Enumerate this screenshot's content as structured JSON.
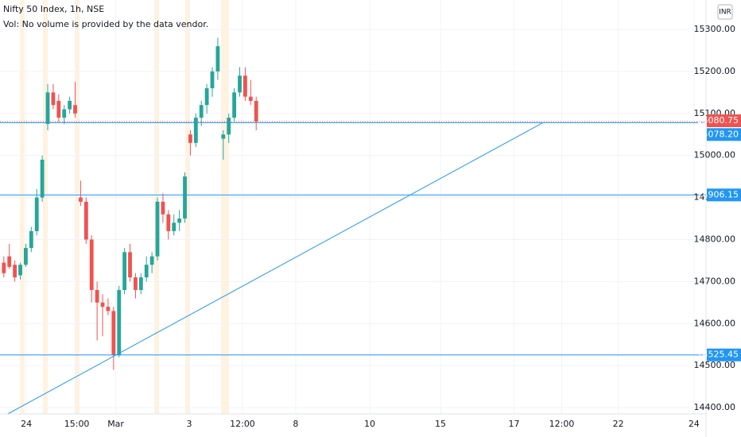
{
  "chart_data": {
    "type": "candlestick",
    "title": "Nifty 50 Index, 1h, NSE",
    "subtitle": "Vol: No volume is provided by the data vendor.",
    "currency": "INR",
    "up_color": "#26a69a",
    "down_color": "#ef5350",
    "line_color": "#2196f3",
    "ylim": [
      14385,
      15370
    ],
    "yticks": [
      {
        "value": 14400,
        "label": "14400.00"
      },
      {
        "value": 14500,
        "label": "14500.00"
      },
      {
        "value": 14600,
        "label": "14600.00"
      },
      {
        "value": 14700,
        "label": "14700.00"
      },
      {
        "value": 14800,
        "label": "14800.00"
      },
      {
        "value": 14900,
        "label": "14900.00"
      },
      {
        "value": 15000,
        "label": "15000.00"
      },
      {
        "value": 15100,
        "label": "15100.00"
      },
      {
        "value": 15200,
        "label": "15200.00"
      },
      {
        "value": 15300,
        "label": "15300.00"
      }
    ],
    "xlim": [
      -0.7,
      128
    ],
    "xticks": [
      {
        "value": 4.1,
        "label": "24"
      },
      {
        "value": 13.3,
        "label": "15:00"
      },
      {
        "value": 20.4,
        "label": "Mar"
      },
      {
        "value": 33.8,
        "label": "3"
      },
      {
        "value": 43.5,
        "label": "12:00"
      },
      {
        "value": 53.2,
        "label": "8"
      },
      {
        "value": 66.7,
        "label": "10"
      },
      {
        "value": 79.6,
        "label": "15"
      },
      {
        "value": 93,
        "label": "17"
      },
      {
        "value": 101.7,
        "label": "12:00"
      },
      {
        "value": 112,
        "label": "22"
      },
      {
        "value": 125.8,
        "label": "24"
      }
    ],
    "grid": true,
    "candles": [
      {
        "o": 14745,
        "h": 14760,
        "l": 14710,
        "c": 14720
      },
      {
        "o": 14760,
        "h": 14790,
        "l": 14730,
        "c": 14735
      },
      {
        "o": 14740,
        "h": 14750,
        "l": 14700,
        "c": 14710
      },
      {
        "o": 14715,
        "h": 14745,
        "l": 14705,
        "c": 14740
      },
      {
        "o": 14740,
        "h": 14790,
        "l": 14735,
        "c": 14780
      },
      {
        "o": 14780,
        "h": 14830,
        "l": 14770,
        "c": 14820
      },
      {
        "o": 14820,
        "h": 14920,
        "l": 14810,
        "c": 14900
      },
      {
        "o": 14900,
        "h": 15000,
        "l": 14890,
        "c": 14990
      },
      {
        "o": 15075,
        "h": 15170,
        "l": 15060,
        "c": 15150
      },
      {
        "o": 15150,
        "h": 15170,
        "l": 15110,
        "c": 15120
      },
      {
        "o": 15130,
        "h": 15145,
        "l": 15080,
        "c": 15090
      },
      {
        "o": 15090,
        "h": 15120,
        "l": 15075,
        "c": 15110
      },
      {
        "o": 15110,
        "h": 15140,
        "l": 15100,
        "c": 15130
      },
      {
        "o": 15120,
        "h": 15175,
        "l": 15090,
        "c": 15100
      },
      {
        "o": 14900,
        "h": 14940,
        "l": 14880,
        "c": 14890
      },
      {
        "o": 14890,
        "h": 14900,
        "l": 14790,
        "c": 14800
      },
      {
        "o": 14800,
        "h": 14810,
        "l": 14650,
        "c": 14680
      },
      {
        "o": 14680,
        "h": 14700,
        "l": 14560,
        "c": 14650
      },
      {
        "o": 14650,
        "h": 14670,
        "l": 14570,
        "c": 14640
      },
      {
        "o": 14640,
        "h": 14660,
        "l": 14620,
        "c": 14630
      },
      {
        "o": 14630,
        "h": 14640,
        "l": 14490,
        "c": 14525
      },
      {
        "o": 14525,
        "h": 14690,
        "l": 14520,
        "c": 14680
      },
      {
        "o": 14680,
        "h": 14780,
        "l": 14670,
        "c": 14770
      },
      {
        "o": 14770,
        "h": 14790,
        "l": 14700,
        "c": 14710
      },
      {
        "o": 14710,
        "h": 14720,
        "l": 14660,
        "c": 14680
      },
      {
        "o": 14680,
        "h": 14720,
        "l": 14670,
        "c": 14710
      },
      {
        "o": 14710,
        "h": 14760,
        "l": 14700,
        "c": 14740
      },
      {
        "o": 14740,
        "h": 14770,
        "l": 14720,
        "c": 14760
      },
      {
        "o": 14760,
        "h": 14900,
        "l": 14750,
        "c": 14890
      },
      {
        "o": 14890,
        "h": 14910,
        "l": 14840,
        "c": 14860
      },
      {
        "o": 14860,
        "h": 14870,
        "l": 14800,
        "c": 14820
      },
      {
        "o": 14820,
        "h": 14860,
        "l": 14810,
        "c": 14840
      },
      {
        "o": 14840,
        "h": 14870,
        "l": 14820,
        "c": 14850
      },
      {
        "o": 14850,
        "h": 14960,
        "l": 14840,
        "c": 14950
      },
      {
        "o": 15050,
        "h": 15060,
        "l": 15000,
        "c": 15030
      },
      {
        "o": 15030,
        "h": 15100,
        "l": 15020,
        "c": 15090
      },
      {
        "o": 15090,
        "h": 15130,
        "l": 15070,
        "c": 15120
      },
      {
        "o": 15120,
        "h": 15170,
        "l": 15100,
        "c": 15160
      },
      {
        "o": 15160,
        "h": 15210,
        "l": 15140,
        "c": 15200
      },
      {
        "o": 15200,
        "h": 15280,
        "l": 15180,
        "c": 15260
      },
      {
        "o": 15040,
        "h": 15060,
        "l": 14990,
        "c": 15050
      },
      {
        "o": 15050,
        "h": 15100,
        "l": 15030,
        "c": 15090
      },
      {
        "o": 15090,
        "h": 15160,
        "l": 15080,
        "c": 15150
      },
      {
        "o": 15150,
        "h": 15210,
        "l": 15140,
        "c": 15190
      },
      {
        "o": 15190,
        "h": 15210,
        "l": 15130,
        "c": 15140
      },
      {
        "o": 15140,
        "h": 15180,
        "l": 15120,
        "c": 15130
      },
      {
        "o": 15130,
        "h": 15140,
        "l": 15060,
        "c": 15080.75
      }
    ],
    "levels": [
      {
        "value": 15078.2,
        "label": "15078.20"
      },
      14906.15,
      14525.45
    ],
    "trendline": {
      "from": {
        "x": 0.7,
        "price": 14385
      },
      "to": {
        "x": 98.3,
        "price": 15078.2
      }
    }
  }
}
